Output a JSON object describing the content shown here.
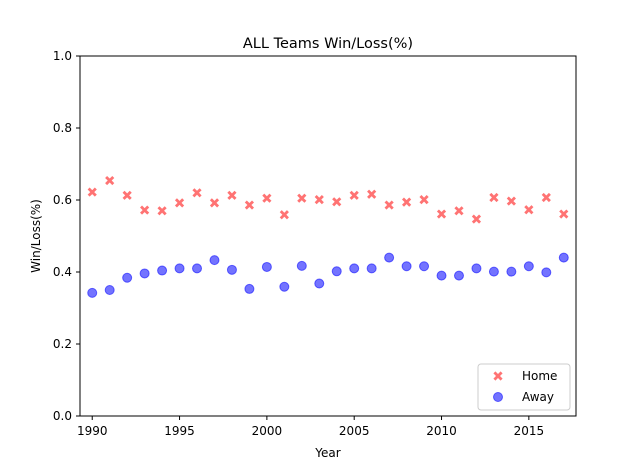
{
  "chart_data": {
    "type": "scatter",
    "title": "ALL Teams Win/Loss(%)",
    "xlabel": "Year",
    "ylabel": "Win/Loss(%)",
    "xlim": [
      1989.3,
      2017.7
    ],
    "ylim": [
      0.0,
      1.0
    ],
    "xticks": [
      1990,
      1995,
      2000,
      2005,
      2010,
      2015
    ],
    "yticks": [
      0.0,
      0.2,
      0.4,
      0.6,
      0.8,
      1.0
    ],
    "ytick_labels": [
      "0.0",
      "0.2",
      "0.4",
      "0.6",
      "0.8",
      "1.0"
    ],
    "x": [
      1990,
      1991,
      1992,
      1993,
      1994,
      1995,
      1996,
      1997,
      1998,
      1999,
      2000,
      2001,
      2002,
      2003,
      2004,
      2005,
      2006,
      2007,
      2008,
      2009,
      2010,
      2011,
      2012,
      2013,
      2014,
      2015,
      2016,
      2017
    ],
    "series": [
      {
        "name": "Home",
        "marker": "X",
        "color": "#ff0000",
        "alpha": 0.55,
        "values": [
          0.622,
          0.654,
          0.613,
          0.572,
          0.57,
          0.592,
          0.62,
          0.592,
          0.613,
          0.586,
          0.605,
          0.559,
          0.605,
          0.601,
          0.595,
          0.613,
          0.616,
          0.586,
          0.594,
          0.601,
          0.561,
          0.57,
          0.547,
          0.607,
          0.597,
          0.573,
          0.607,
          0.561
        ]
      },
      {
        "name": "Away",
        "marker": "o",
        "color": "#0000ff",
        "alpha": 0.55,
        "values": [
          0.342,
          0.35,
          0.384,
          0.396,
          0.404,
          0.41,
          0.41,
          0.433,
          0.406,
          0.353,
          0.414,
          0.359,
          0.417,
          0.368,
          0.402,
          0.41,
          0.41,
          0.44,
          0.416,
          0.416,
          0.39,
          0.39,
          0.41,
          0.401,
          0.401,
          0.416,
          0.399,
          0.44
        ]
      }
    ],
    "legend_position": "lower-right",
    "grid": false
  }
}
